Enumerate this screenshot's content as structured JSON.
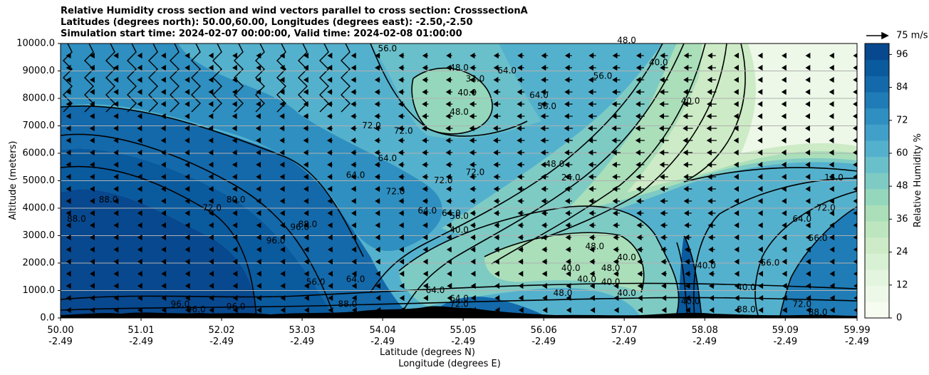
{
  "chart_data": {
    "type": "contourf",
    "title_lines": [
      "Relative Humidity cross section and wind vectors parallel to cross section: CrosssectionA",
      "Latitudes (degrees north): 50.00,60.00, Longitudes (degrees east): -2.50,-2.50",
      "Simulation start time: 2024-02-07 00:00:00, Valid time: 2024-02-08 01:00:00"
    ],
    "ylabel": "Altitude (meters)",
    "xlabel_line1": "Latitude (degrees N)",
    "xlabel_line2": "Longitude (degrees E)",
    "ylim": [
      0,
      10000
    ],
    "y_ticks": [
      "0.0",
      "1000.0",
      "2000.0",
      "3000.0",
      "4000.0",
      "5000.0",
      "6000.0",
      "7000.0",
      "8000.0",
      "9000.0",
      "10000.0"
    ],
    "x_ticks": [
      {
        "lat": "50.00",
        "lon": "-2.49"
      },
      {
        "lat": "51.01",
        "lon": "-2.49"
      },
      {
        "lat": "52.02",
        "lon": "-2.49"
      },
      {
        "lat": "53.03",
        "lon": "-2.49"
      },
      {
        "lat": "54.04",
        "lon": "-2.49"
      },
      {
        "lat": "55.05",
        "lon": "-2.49"
      },
      {
        "lat": "56.06",
        "lon": "-2.49"
      },
      {
        "lat": "57.07",
        "lon": "-2.49"
      },
      {
        "lat": "58.08",
        "lon": "-2.49"
      },
      {
        "lat": "59.09",
        "lon": "-2.49"
      },
      {
        "lat": "59.99",
        "lon": "-2.49"
      }
    ],
    "colorbar": {
      "label": "Relative Humidity %",
      "ticks": [
        "0",
        "12",
        "24",
        "36",
        "48",
        "60",
        "72",
        "84",
        "96"
      ],
      "range": [
        0,
        100
      ],
      "colors": [
        "#f7fcf0",
        "#edf8e8",
        "#e3f4df",
        "#d8f0d4",
        "#cdebc6",
        "#bde6bf",
        "#aadfb9",
        "#95d7bc",
        "#7ecbc4",
        "#69bfca",
        "#54b1cd",
        "#40a0c9",
        "#2e8fc0",
        "#1f7cb6",
        "#1369aa",
        "#0a5a9e",
        "#08488e"
      ]
    },
    "wind_key": {
      "label": "75 m/s"
    },
    "contour_labels": [
      {
        "text": "56.0",
        "lat": 54.1,
        "alt": 9800
      },
      {
        "text": "48.0",
        "lat": 55.0,
        "alt": 9100
      },
      {
        "text": "32.0",
        "lat": 55.2,
        "alt": 8700
      },
      {
        "text": "40.0",
        "lat": 55.1,
        "alt": 8200
      },
      {
        "text": "64.0",
        "lat": 55.6,
        "alt": 9000
      },
      {
        "text": "48.0",
        "lat": 55.0,
        "alt": 7500
      },
      {
        "text": "64.0",
        "lat": 56.0,
        "alt": 8100
      },
      {
        "text": "56.0",
        "lat": 56.1,
        "alt": 7700
      },
      {
        "text": "56.0",
        "lat": 56.8,
        "alt": 8800
      },
      {
        "text": "48.0",
        "lat": 57.1,
        "alt": 10100
      },
      {
        "text": "40.0",
        "lat": 57.5,
        "alt": 9300
      },
      {
        "text": "40.0",
        "lat": 57.9,
        "alt": 7900
      },
      {
        "text": "72.0",
        "lat": 53.9,
        "alt": 7000
      },
      {
        "text": "72.0",
        "lat": 54.3,
        "alt": 6800
      },
      {
        "text": "64.0",
        "lat": 54.1,
        "alt": 5800
      },
      {
        "text": "64.0",
        "lat": 53.7,
        "alt": 5200
      },
      {
        "text": "72.0",
        "lat": 55.2,
        "alt": 5300
      },
      {
        "text": "72.0",
        "lat": 54.8,
        "alt": 5000
      },
      {
        "text": "72.0",
        "lat": 54.2,
        "alt": 4600
      },
      {
        "text": "48.0",
        "lat": 56.2,
        "alt": 5600
      },
      {
        "text": "24.0",
        "lat": 56.4,
        "alt": 5100
      },
      {
        "text": "16.0",
        "lat": 59.7,
        "alt": 5100
      },
      {
        "text": "72.0",
        "lat": 59.6,
        "alt": 4000
      },
      {
        "text": "64.0",
        "lat": 54.6,
        "alt": 3900
      },
      {
        "text": "64.0",
        "lat": 54.9,
        "alt": 3800
      },
      {
        "text": "56.0",
        "lat": 55.0,
        "alt": 3700
      },
      {
        "text": "40.0",
        "lat": 55.0,
        "alt": 3200
      },
      {
        "text": "64.0",
        "lat": 59.3,
        "alt": 3600
      },
      {
        "text": "56.0",
        "lat": 59.5,
        "alt": 2900
      },
      {
        "text": "56.0",
        "lat": 58.9,
        "alt": 2000
      },
      {
        "text": "88.0",
        "lat": 50.6,
        "alt": 4300
      },
      {
        "text": "88.0",
        "lat": 50.2,
        "alt": 3600
      },
      {
        "text": "72.0",
        "lat": 51.9,
        "alt": 4000
      },
      {
        "text": "80.0",
        "lat": 52.2,
        "alt": 4300
      },
      {
        "text": "96.0",
        "lat": 52.7,
        "alt": 2800
      },
      {
        "text": "96.0",
        "lat": 53.0,
        "alt": 3300
      },
      {
        "text": "88.0",
        "lat": 53.1,
        "alt": 3400
      },
      {
        "text": "56.0",
        "lat": 53.2,
        "alt": 1300
      },
      {
        "text": "64.0",
        "lat": 53.7,
        "alt": 1400
      },
      {
        "text": "48.0",
        "lat": 56.7,
        "alt": 2600
      },
      {
        "text": "48.0",
        "lat": 56.9,
        "alt": 1800
      },
      {
        "text": "40.0",
        "lat": 56.4,
        "alt": 1800
      },
      {
        "text": "40.0",
        "lat": 56.6,
        "alt": 1400
      },
      {
        "text": "40.0",
        "lat": 57.1,
        "alt": 2200
      },
      {
        "text": "40.0",
        "lat": 56.9,
        "alt": 1300
      },
      {
        "text": "40.0",
        "lat": 57.1,
        "alt": 900
      },
      {
        "text": "48.0",
        "lat": 56.3,
        "alt": 900
      },
      {
        "text": "40.0",
        "lat": 58.1,
        "alt": 1900
      },
      {
        "text": "40.0",
        "lat": 58.6,
        "alt": 1100
      },
      {
        "text": "64.0",
        "lat": 54.7,
        "alt": 1000
      },
      {
        "text": "64.0",
        "lat": 55.0,
        "alt": 700
      },
      {
        "text": "72.0",
        "lat": 55.0,
        "alt": 500
      },
      {
        "text": "96.0",
        "lat": 51.5,
        "alt": 500
      },
      {
        "text": "96.0",
        "lat": 51.7,
        "alt": 300
      },
      {
        "text": "96.0",
        "lat": 52.2,
        "alt": 400
      },
      {
        "text": "88.0",
        "lat": 53.6,
        "alt": 500
      },
      {
        "text": "88.0",
        "lat": 58.6,
        "alt": 300
      },
      {
        "text": "88.0",
        "lat": 59.5,
        "alt": 200
      },
      {
        "text": "72.0",
        "lat": 59.3,
        "alt": 500
      },
      {
        "text": "40.0",
        "lat": 57.9,
        "alt": 600
      }
    ]
  }
}
